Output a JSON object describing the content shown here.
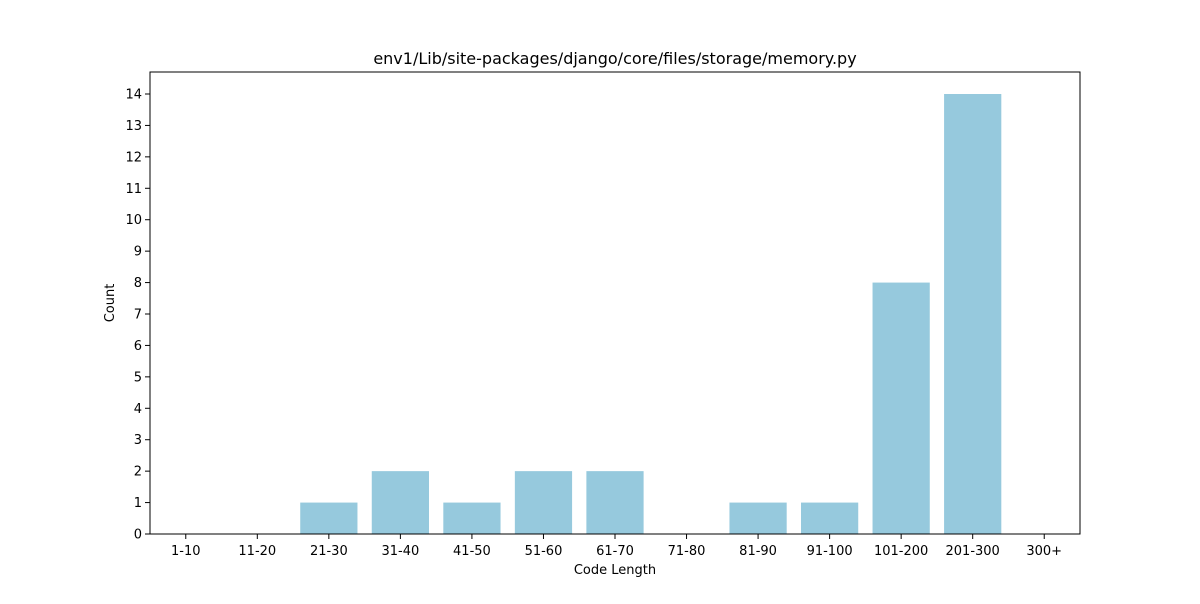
{
  "chart_data": {
    "type": "bar",
    "title": "env1/Lib/site-packages/django/core/files/storage/memory.py",
    "xlabel": "Code Length",
    "ylabel": "Count",
    "categories": [
      "1-10",
      "11-20",
      "21-30",
      "31-40",
      "41-50",
      "51-60",
      "61-70",
      "71-80",
      "81-90",
      "91-100",
      "101-200",
      "201-300",
      "300+"
    ],
    "values": [
      0,
      0,
      1,
      2,
      1,
      2,
      2,
      0,
      1,
      1,
      8,
      14,
      0
    ],
    "ylim": [
      0,
      14.7
    ],
    "yticks": [
      0,
      1,
      2,
      3,
      4,
      5,
      6,
      7,
      8,
      9,
      10,
      11,
      12,
      13,
      14
    ],
    "bar_color": "#96c9dd",
    "grid": false,
    "legend": "none"
  }
}
